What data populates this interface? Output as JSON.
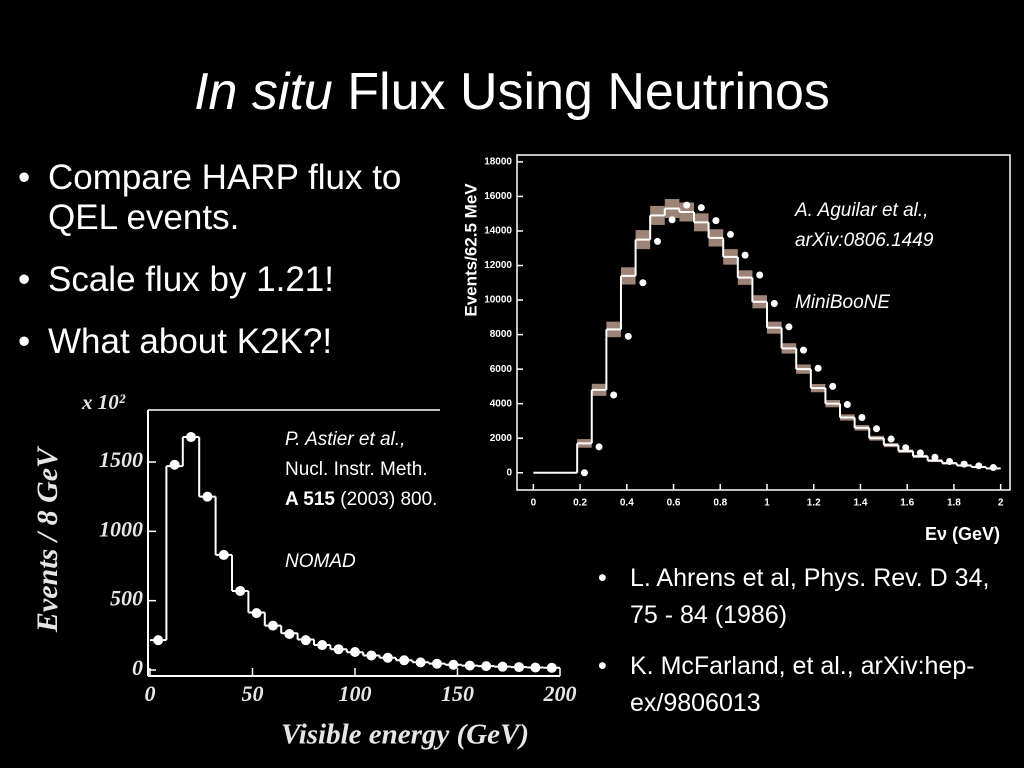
{
  "title": {
    "italic": "In situ",
    "text": "Flux Using Neutrinos"
  },
  "bullets": [
    "Compare HARP flux to QEL events.",
    "Scale flux by 1.21!",
    "What about K2K?!"
  ],
  "references": [
    "L. Ahrens et al, Phys. Rev. D 34, 75 - 84 (1986)",
    "K. McFarland, et al., arXiv:hep-ex/9806013"
  ],
  "chart_data": [
    {
      "type": "histogram",
      "ylabel": "Events/62.5 MeV",
      "xlabel": "Eν (GeV)",
      "annotations": [
        "A. Aguilar et al.,",
        "arXiv:0806.1449",
        "MiniBooNE"
      ],
      "xlim": [
        -0.07,
        2.04
      ],
      "xticks": [
        0,
        0.2,
        0.4,
        0.6,
        0.8,
        1,
        1.2,
        1.4,
        1.6,
        1.8,
        2
      ],
      "ylim": [
        -1000,
        18400
      ],
      "yticks": [
        0,
        2000,
        4000,
        6000,
        8000,
        10000,
        12000,
        14000,
        16000,
        18000
      ],
      "bins": [
        0,
        0.0625,
        0.125,
        0.1875,
        0.25,
        0.3125,
        0.375,
        0.4375,
        0.5,
        0.5625,
        0.625,
        0.6875,
        0.75,
        0.8125,
        0.875,
        0.9375,
        1,
        1.0625,
        1.125,
        1.1875,
        1.25,
        1.3125,
        1.375,
        1.4375,
        1.5,
        1.5625,
        1.625,
        1.6875,
        1.75,
        1.8125,
        1.875,
        1.9375,
        2
      ],
      "series": [
        {
          "color": "#ffffff",
          "band_color": "#9c8478",
          "values": [
            0,
            0,
            0,
            1700,
            4800,
            8300,
            11400,
            13500,
            14900,
            15300,
            15100,
            14500,
            13600,
            12500,
            11300,
            9900,
            8400,
            7200,
            6000,
            4900,
            4000,
            3200,
            2600,
            2000,
            1600,
            1250,
            950,
            700,
            550,
            420,
            330,
            250
          ],
          "errors": [
            0,
            0,
            0,
            250,
            350,
            450,
            500,
            550,
            550,
            550,
            550,
            520,
            500,
            450,
            420,
            380,
            350,
            300,
            270,
            240,
            210,
            180,
            160,
            140,
            120,
            100,
            90,
            80,
            70,
            60,
            50,
            50
          ]
        }
      ],
      "points": {
        "color": "#ffffff",
        "x": [
          0.21875,
          0.28125,
          0.34375,
          0.40625,
          0.46875,
          0.53125,
          0.59375,
          0.65625,
          0.71875,
          0.78125,
          0.84375,
          0.90625,
          0.96875,
          1.03125,
          1.09375,
          1.15625,
          1.21875,
          1.28125,
          1.34375,
          1.40625,
          1.46875,
          1.53125,
          1.59375,
          1.65625,
          1.71875,
          1.78125,
          1.84375,
          1.90625,
          1.96875
        ],
        "values": [
          0,
          1500,
          4500,
          7900,
          11000,
          13400,
          14650,
          15500,
          15350,
          14600,
          13800,
          12600,
          11450,
          9800,
          8450,
          7100,
          6050,
          5000,
          3950,
          3200,
          2550,
          1950,
          1450,
          1150,
          900,
          650,
          500,
          400,
          300
        ]
      }
    },
    {
      "type": "histogram",
      "ylabel": "Events / 8 GeV",
      "xlabel": "Visible energy (GeV)",
      "multiplier": "x 10²",
      "annotations": [
        "P. Astier et al.,",
        "Nucl. Instr. Meth.",
        {
          "bold": "A 515",
          "text": "(2003) 800."
        },
        "NOMAD"
      ],
      "xlim": [
        0,
        200
      ],
      "xticks": [
        0,
        50,
        100,
        150,
        200
      ],
      "ylim": [
        0,
        1875
      ],
      "yticks": [
        0,
        500,
        1000,
        1500
      ],
      "bins": [
        0,
        8,
        16,
        24,
        32,
        40,
        48,
        56,
        64,
        72,
        80,
        88,
        96,
        104,
        112,
        120,
        128,
        136,
        144,
        152,
        160,
        168,
        176,
        184,
        192,
        200
      ],
      "series": [
        {
          "color": "#ffffff",
          "values": [
            215,
            1470,
            1680,
            1250,
            830,
            570,
            415,
            320,
            265,
            220,
            180,
            150,
            128,
            105,
            88,
            70,
            56,
            46,
            38,
            32,
            28,
            24,
            21,
            18,
            16
          ]
        }
      ],
      "points": {
        "color": "#ffffff",
        "x": [
          4,
          12,
          20,
          28,
          36,
          44,
          52,
          60,
          68,
          76,
          84,
          92,
          100,
          108,
          116,
          124,
          132,
          140,
          148,
          156,
          164,
          172,
          180,
          188,
          196
        ],
        "values": [
          215,
          1480,
          1680,
          1250,
          830,
          570,
          410,
          320,
          260,
          215,
          180,
          150,
          130,
          105,
          88,
          70,
          55,
          45,
          38,
          32,
          28,
          24,
          21,
          18,
          16
        ]
      }
    }
  ]
}
